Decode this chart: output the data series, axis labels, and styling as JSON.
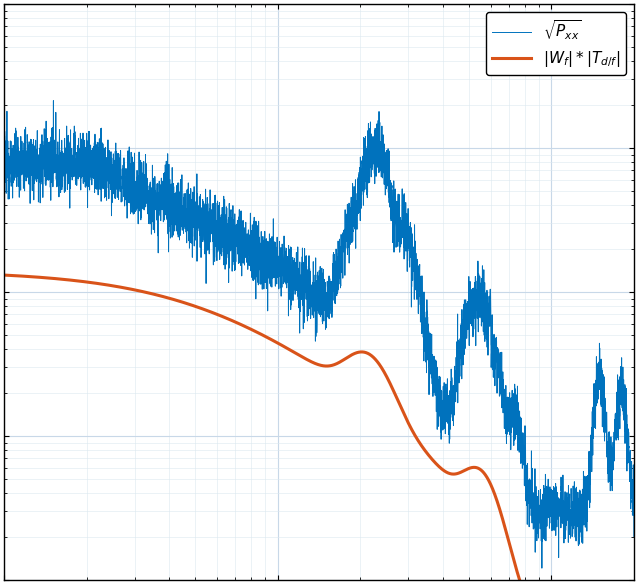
{
  "title": "",
  "xlabel": "",
  "ylabel": "",
  "xlim": [
    1,
    200
  ],
  "ylim": [
    1e-09,
    1e-05
  ],
  "blue_color": "#0072BD",
  "orange_color": "#D95319",
  "legend_labels": [
    "$\\sqrt{P_{xx}}$",
    "$|W_f| * |T_{d/f}|$"
  ],
  "grid_major_color": "#c8d8e8",
  "grid_minor_color": "#dce8f0",
  "background_color": "#ffffff",
  "fig_facecolor": "#ffffff"
}
